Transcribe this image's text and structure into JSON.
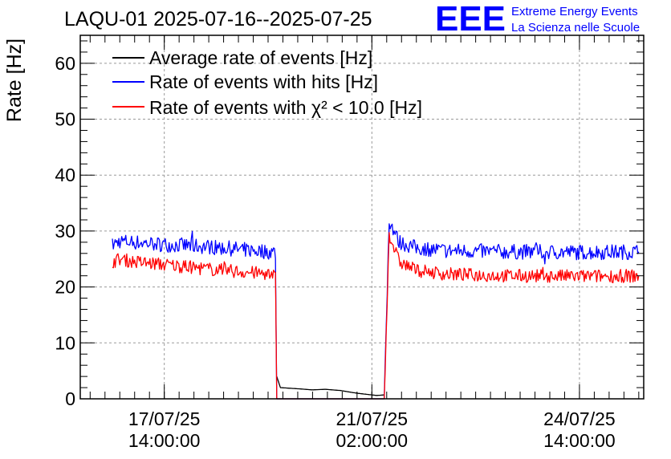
{
  "chart_data": {
    "type": "line",
    "title": "LAQU-01 2025-07-16--2025-07-25",
    "ylabel": "Rate [Hz]",
    "xlabel": "",
    "ylim": [
      0,
      65
    ],
    "yticks": [
      0,
      10,
      20,
      30,
      40,
      50,
      60
    ],
    "xlim": [
      "2025-07-16 04:00",
      "2025-07-25 16:00"
    ],
    "xticks": [
      {
        "date": "17/07/25",
        "time": "14:00:00",
        "t": "2025-07-17 14:00"
      },
      {
        "date": "21/07/25",
        "time": "02:00:00",
        "t": "2025-07-21 02:00"
      },
      {
        "date": "24/07/25",
        "time": "14:00:00",
        "t": "2025-07-24 14:00"
      }
    ],
    "grid": true,
    "legend_position": "top-left",
    "series": [
      {
        "name": "Average rate of events [Hz]",
        "color": "#000000",
        "x": [
          "2025-07-16 17:00",
          "2025-07-19 11:00",
          "2025-07-19 11:30",
          "2025-07-19 13:00",
          "2025-07-19 20:00",
          "2025-07-20 02:00",
          "2025-07-20 07:00",
          "2025-07-20 13:00",
          "2025-07-20 20:00",
          "2025-07-21 04:00",
          "2025-07-21 07:00",
          "2025-07-21 07:30"
        ],
        "values": [
          null,
          null,
          4,
          2,
          1.8,
          1.6,
          1.7,
          1.5,
          1.0,
          0.6,
          0.7,
          null
        ]
      },
      {
        "name": "Rate of events with hits [Hz]",
        "color": "#0000ff",
        "x": [
          "2025-07-16 17:00",
          "2025-07-16 20:00",
          "2025-07-17 02:00",
          "2025-07-17 14:00",
          "2025-07-18 08:00",
          "2025-07-19 11:00",
          "2025-07-19 11:30",
          "2025-07-21 07:00",
          "2025-07-21 09:00",
          "2025-07-21 13:00",
          "2025-07-21 20:00",
          "2025-07-22 08:00",
          "2025-07-23 08:00",
          "2025-07-24 14:00",
          "2025-07-25 14:00"
        ],
        "values": [
          27.5,
          28.2,
          28.0,
          27.6,
          27.2,
          26.2,
          0,
          0,
          32.0,
          28.0,
          27.0,
          26.5,
          26.3,
          26.2,
          26.3
        ]
      },
      {
        "name": "Rate of events with χ² < 10.0 [Hz]",
        "color": "#ff0000",
        "x": [
          "2025-07-16 17:00",
          "2025-07-16 20:00",
          "2025-07-17 02:00",
          "2025-07-17 14:00",
          "2025-07-18 08:00",
          "2025-07-19 11:00",
          "2025-07-19 11:30",
          "2025-07-21 07:00",
          "2025-07-21 09:00",
          "2025-07-21 13:00",
          "2025-07-21 20:00",
          "2025-07-22 08:00",
          "2025-07-23 08:00",
          "2025-07-24 14:00",
          "2025-07-25 14:00"
        ],
        "values": [
          24.5,
          25.0,
          24.5,
          24.0,
          23.2,
          22.2,
          0,
          0,
          29.5,
          24.5,
          23.0,
          22.3,
          22.0,
          21.9,
          22.0
        ]
      }
    ]
  },
  "logo": {
    "mark": "EEE",
    "line1": "Extreme Energy Events",
    "line2": "La Scienza nelle Scuole",
    "color": "#0000ff"
  }
}
